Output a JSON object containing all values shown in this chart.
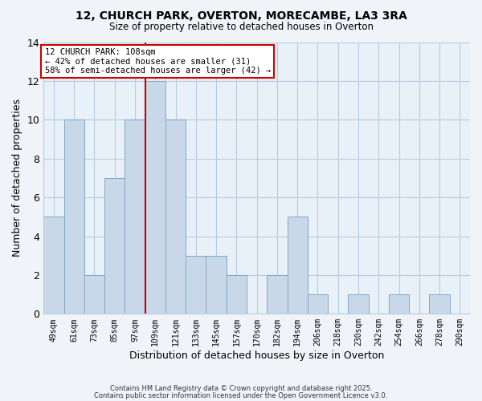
{
  "title1": "12, CHURCH PARK, OVERTON, MORECAMBE, LA3 3RA",
  "title2": "Size of property relative to detached houses in Overton",
  "xlabel": "Distribution of detached houses by size in Overton",
  "ylabel": "Number of detached properties",
  "footer1": "Contains HM Land Registry data © Crown copyright and database right 2025.",
  "footer2": "Contains public sector information licensed under the Open Government Licence v3.0.",
  "bin_labels": [
    "49sqm",
    "61sqm",
    "73sqm",
    "85sqm",
    "97sqm",
    "109sqm",
    "121sqm",
    "133sqm",
    "145sqm",
    "157sqm",
    "170sqm",
    "182sqm",
    "194sqm",
    "206sqm",
    "218sqm",
    "230sqm",
    "242sqm",
    "254sqm",
    "266sqm",
    "278sqm",
    "290sqm"
  ],
  "bar_heights": [
    5,
    10,
    2,
    7,
    10,
    12,
    10,
    3,
    3,
    2,
    0,
    2,
    5,
    1,
    0,
    1,
    0,
    1,
    0,
    1,
    0
  ],
  "bar_color": "#c8d8e8",
  "bar_edge_color": "#7fa8c8",
  "highlight_bin_index": 5,
  "highlight_color": "#cc0000",
  "annotation_title": "12 CHURCH PARK: 108sqm",
  "annotation_line1": "← 42% of detached houses are smaller (31)",
  "annotation_line2": "58% of semi-detached houses are larger (42) →",
  "annotation_box_color": "#ffffff",
  "annotation_box_edge": "#cc0000",
  "ylim": [
    0,
    14
  ],
  "yticks": [
    0,
    2,
    4,
    6,
    8,
    10,
    12,
    14
  ],
  "background_color": "#f0f4f8",
  "plot_bg_color": "#e8f0f8",
  "grid_color": "#b8cce0"
}
